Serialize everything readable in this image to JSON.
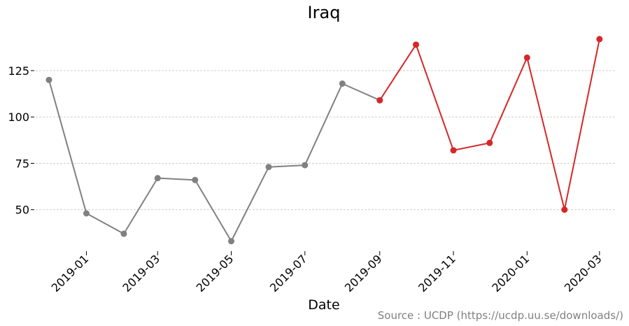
{
  "chart_data": {
    "type": "line",
    "title": "Iraq",
    "xlabel": "Date",
    "ylabel": "",
    "source": "Source : UCDP (https://ucdp.uu.se/downloads/)",
    "x_tick_labels": [
      "2019-01",
      "2019-03",
      "2019-05",
      "2019-07",
      "2019-09",
      "2019-11",
      "2020-01",
      "2020-03"
    ],
    "y_ticks": [
      50,
      75,
      100,
      125
    ],
    "ylim": [
      28,
      148
    ],
    "xlim": [
      "2018-11-20",
      "2020-03-15"
    ],
    "grid": "horizontal dashed",
    "series": [
      {
        "color": "#808080",
        "points": [
          {
            "x": "2018-12-01",
            "y": 120
          },
          {
            "x": "2019-01-01",
            "y": 48
          },
          {
            "x": "2019-02-01",
            "y": 37
          },
          {
            "x": "2019-03-01",
            "y": 67
          },
          {
            "x": "2019-04-01",
            "y": 66
          },
          {
            "x": "2019-05-01",
            "y": 33
          },
          {
            "x": "2019-06-01",
            "y": 73
          },
          {
            "x": "2019-07-01",
            "y": 74
          },
          {
            "x": "2019-08-01",
            "y": 118
          },
          {
            "x": "2019-09-01",
            "y": 109
          }
        ]
      },
      {
        "color": "#d62728",
        "points": [
          {
            "x": "2019-09-01",
            "y": 109
          },
          {
            "x": "2019-10-01",
            "y": 139
          },
          {
            "x": "2019-11-01",
            "y": 82
          },
          {
            "x": "2019-12-01",
            "y": 86
          },
          {
            "x": "2020-01-01",
            "y": 132
          },
          {
            "x": "2020-02-01",
            "y": 50
          },
          {
            "x": "2020-03-01",
            "y": 142
          }
        ]
      }
    ]
  }
}
